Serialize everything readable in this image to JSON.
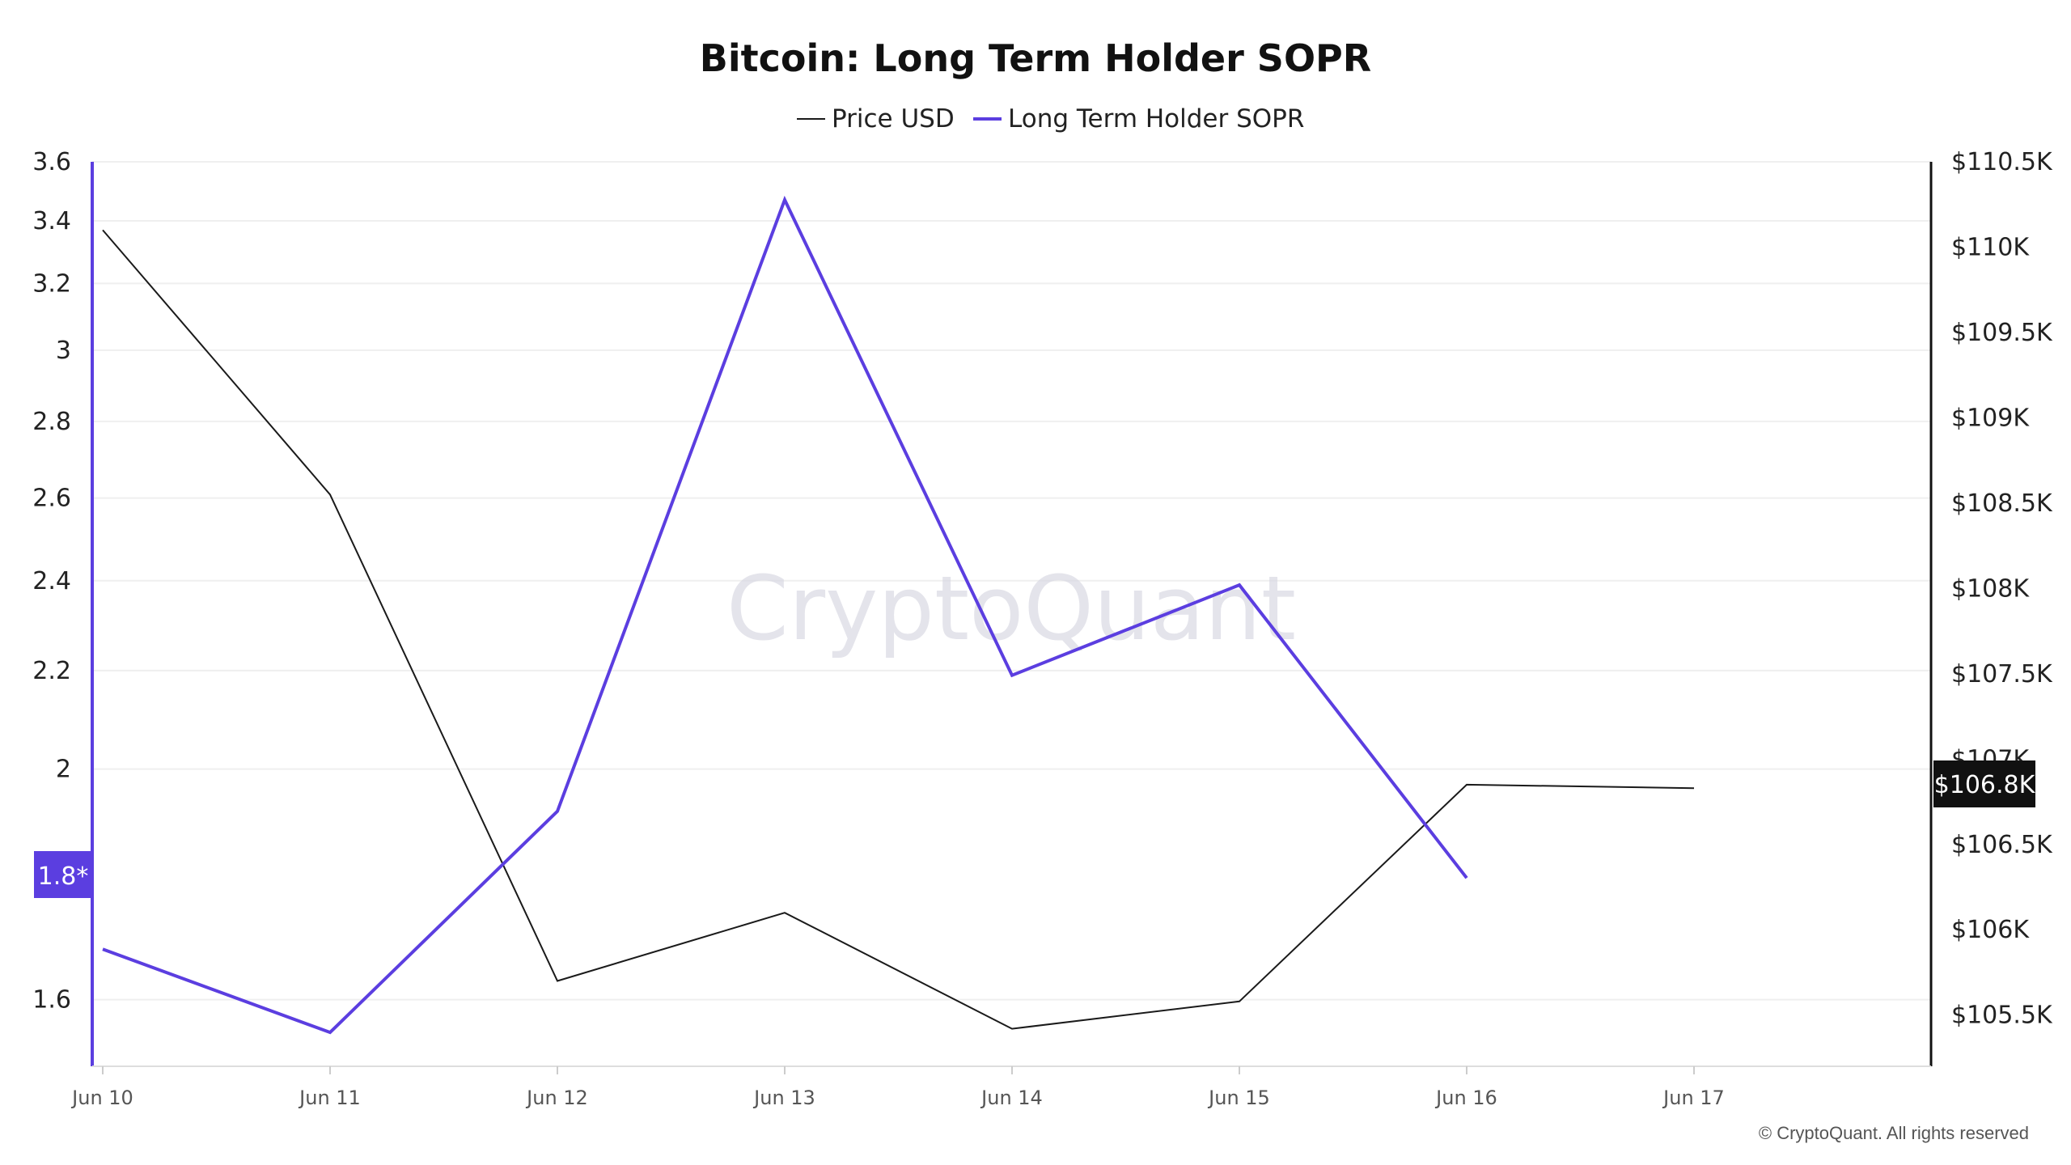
{
  "chart_data": {
    "type": "line",
    "title": "Bitcoin: Long Term Holder SOPR",
    "x": [
      "Jun 10",
      "Jun 11",
      "Jun 12",
      "Jun 13",
      "Jun 14",
      "Jun 15",
      "Jun 16",
      "Jun 17"
    ],
    "series": [
      {
        "name": "Price USD",
        "axis": "right",
        "color": "#1a1a1a",
        "values": [
          110100,
          108550,
          105700,
          106100,
          105420,
          105580,
          106850,
          106830
        ]
      },
      {
        "name": "Long Term Holder SOPR",
        "axis": "left",
        "color": "#5b3ee0",
        "values": [
          1.68,
          1.55,
          1.92,
          3.47,
          2.19,
          2.39,
          1.8,
          null
        ]
      }
    ],
    "y_left": {
      "ticks": [
        "3.6",
        "3.4",
        "3.2",
        "3",
        "2.8",
        "2.6",
        "2.4",
        "2.2",
        "2",
        "1.6"
      ],
      "scale": "log",
      "range": [
        1.5,
        3.6
      ]
    },
    "y_right": {
      "ticks": [
        "$110.5K",
        "$110K",
        "$109.5K",
        "$109K",
        "$108.5K",
        "$108K",
        "$107.5K",
        "$107K",
        "$106.5K",
        "$106K",
        "$105.5K"
      ],
      "range": [
        105200,
        110500
      ]
    },
    "current_markers": {
      "left": "1.8*",
      "right": "$106.8K"
    },
    "legend_position": "top-center",
    "grid": true
  },
  "watermark": "CryptoQuant",
  "copyright": "© CryptoQuant. All rights reserved",
  "colors": {
    "price": "#1a1a1a",
    "sopr": "#5b3ee0",
    "grid": "#efefef",
    "badge_left": "#5b3ee0",
    "badge_right": "#111111"
  }
}
